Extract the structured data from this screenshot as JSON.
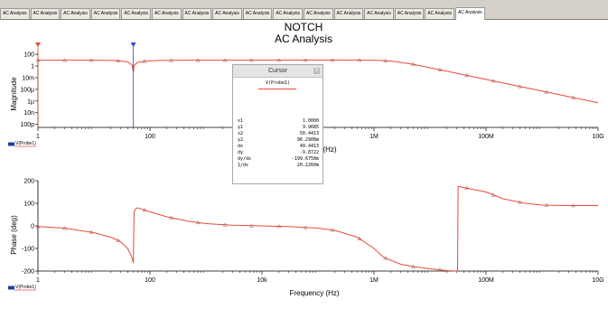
{
  "tabs": [
    "AC Analysis",
    "AC Analysis",
    "AC Analysis",
    "AC Analysis",
    "AC Analysis",
    "AC Analysis",
    "AC Analysis",
    "AC Analysis",
    "AC Analysis",
    "AC Analysis",
    "AC Analysis",
    "AC Analysis",
    "AC Analysis",
    "AC Analysis",
    "AC Analysis",
    "AC Analysis"
  ],
  "active_tab": 15,
  "colors": {
    "trace": "#e74c3c",
    "cursor1": "#e74c3c",
    "cursor2": "#2b4bd6",
    "grid": "#c8c8c8"
  },
  "cursor": {
    "title": "Cursor",
    "close_glyph": "x",
    "trace": "V(Probe1)",
    "rows": [
      {
        "label": "x1",
        "value": "1.0000"
      },
      {
        "label": "y1",
        "value": "9.9685"
      },
      {
        "label": "x2",
        "value": "50.4413"
      },
      {
        "label": "y2",
        "value": "96.2908m"
      },
      {
        "label": "dx",
        "value": "49.4413"
      },
      {
        "label": "dy",
        "value": "-9.8722"
      },
      {
        "label": "dy/dx",
        "value": "-199.6758m"
      },
      {
        "label": "1/dx",
        "value": "20.2260m"
      }
    ]
  },
  "chart_data": [
    {
      "type": "line",
      "title": "NOTCH",
      "subtitle": "AC Analysis",
      "xlabel": "Frequency (Hz)",
      "ylabel": "Magnitude",
      "xscale": "log",
      "yscale": "log",
      "xlim": [
        1,
        10000000000
      ],
      "ylim": [
        3e-11,
        300
      ],
      "x_ticks": [
        1,
        100,
        10000,
        1000000,
        100000000,
        10000000000
      ],
      "x_tick_labels": [
        "1",
        "100",
        "10k",
        "1M",
        "100M",
        "10G"
      ],
      "y_ticks": [
        100,
        1,
        0.01,
        0.0001,
        1e-06,
        1e-08,
        1e-10
      ],
      "y_tick_labels": [
        "100",
        "1",
        "10m",
        "100µ",
        "1µ",
        "10n",
        "100p"
      ],
      "grid": false,
      "legend": "bottom-left",
      "series": [
        {
          "name": "V(Probe1)",
          "x": [
            1,
            3,
            10,
            25,
            40,
            48,
            50.4,
            52,
            60,
            80,
            150,
            500,
            3000,
            30000,
            300000,
            1000000,
            2000000,
            5000000,
            10000000,
            30000000,
            100000000,
            300000000,
            1000000000,
            3000000000,
            10000000000
          ],
          "y": [
            9.97,
            9.95,
            9.8,
            8.5,
            5,
            1.5,
            0.0963,
            1.2,
            4,
            6.5,
            8.8,
            9.7,
            9.9,
            10,
            10,
            9.95,
            7,
            2,
            0.5,
            0.055,
            0.005,
            0.00055,
            5e-05,
            5.5e-06,
            5e-07
          ]
        }
      ],
      "markers_x": [
        1,
        3,
        9,
        27,
        80,
        240,
        720,
        2200,
        6500,
        20000,
        60000,
        180000,
        550000,
        1600000,
        5000000,
        15000000,
        45000000,
        135000000,
        400000000,
        1200000000,
        3600000000
      ],
      "cursors": [
        {
          "name": "cursor1",
          "x": 1
        },
        {
          "name": "cursor2",
          "x": 50.4413
        }
      ],
      "cursor_legend": "V(Probe1)"
    },
    {
      "type": "line",
      "title": "",
      "xlabel": "Frequency (Hz)",
      "ylabel": "Phase (deg)",
      "xscale": "log",
      "xlim": [
        1,
        10000000000
      ],
      "ylim": [
        -200,
        200
      ],
      "x_ticks": [
        1,
        100,
        10000,
        1000000,
        100000000,
        10000000000
      ],
      "x_tick_labels": [
        "1",
        "100",
        "10k",
        "1M",
        "100M",
        "10G"
      ],
      "y_ticks": [
        200,
        100,
        0,
        -100,
        -200
      ],
      "y_tick_labels": [
        "200",
        "100",
        "0",
        "-100",
        "-200"
      ],
      "grid": false,
      "legend": "bottom-left",
      "series": [
        {
          "name": "V(Probe1)",
          "x": [
            1,
            3,
            10,
            20,
            30,
            40,
            46,
            49,
            50.4,
            52,
            55,
            60,
            70,
            100,
            200,
            500,
            1000,
            3000,
            10000,
            30000,
            100000,
            200000,
            500000,
            1000000,
            1500000,
            3000000,
            5000000,
            10000000,
            20000000,
            31000000,
            31700000,
            40000000,
            100000000,
            200000000,
            500000000,
            1000000000,
            3000000000,
            10000000000
          ],
          "y": [
            -3,
            -10,
            -30,
            -50,
            -70,
            -100,
            -130,
            -150,
            -165,
            60,
            75,
            80,
            75,
            62,
            40,
            20,
            10,
            3,
            0,
            -3,
            -10,
            -20,
            -50,
            -100,
            -140,
            -170,
            -180,
            -190,
            -198,
            -200,
            175,
            170,
            150,
            120,
            100,
            92,
            90,
            90
          ]
        }
      ],
      "markers_x": [
        1,
        3,
        9,
        27,
        80,
        240,
        720,
        2200,
        6500,
        20000,
        60000,
        180000,
        550000,
        1600000,
        5000000,
        15000000,
        45000000,
        135000000,
        400000000,
        1200000000,
        3600000000
      ],
      "legend_entry": "V(Probe1)"
    }
  ]
}
